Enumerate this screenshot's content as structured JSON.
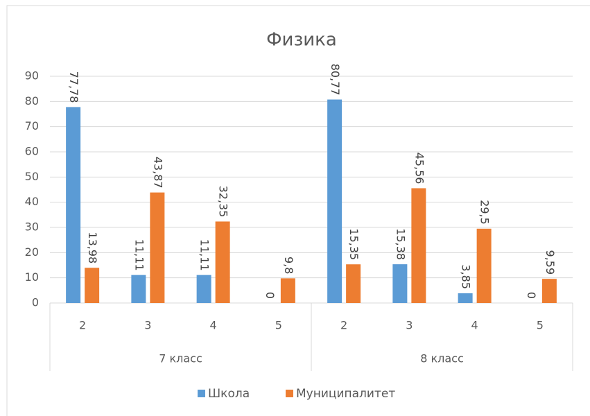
{
  "chart_data": {
    "type": "bar",
    "title": "Физика",
    "categories": [
      "2",
      "3",
      "4",
      "5",
      "2",
      "3",
      "4",
      "5"
    ],
    "group_labels": [
      "7 класс",
      "8 класс"
    ],
    "series": [
      {
        "name": "Школа",
        "color": "#5b9bd5",
        "values": [
          77.78,
          11.11,
          11.11,
          0,
          80.77,
          15.38,
          3.85,
          0
        ],
        "value_labels": [
          "77,78",
          "11,11",
          "11,11",
          "0",
          "80,77",
          "15,38",
          "3,85",
          "0"
        ]
      },
      {
        "name": "Муниципалитет",
        "color": "#ed7d31",
        "values": [
          13.98,
          43.87,
          32.35,
          9.8,
          15.35,
          45.56,
          29.5,
          9.59
        ],
        "value_labels": [
          "13,98",
          "43,87",
          "32,35",
          "9,8",
          "15,35",
          "45,56",
          "29,5",
          "9,59"
        ]
      }
    ],
    "ylim": [
      0,
      90
    ],
    "yticks": [
      0,
      10,
      20,
      30,
      40,
      50,
      60,
      70,
      80,
      90
    ],
    "grid": true,
    "legend": "bottom"
  }
}
